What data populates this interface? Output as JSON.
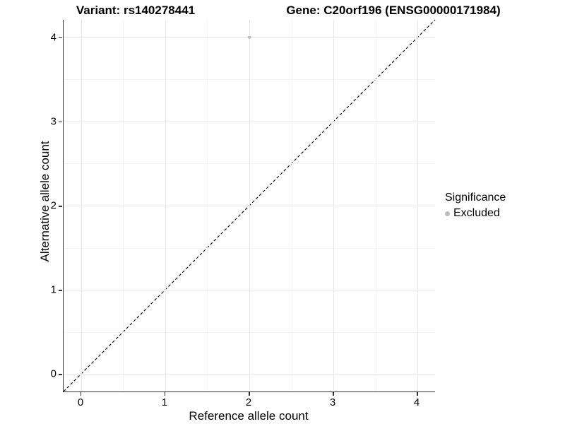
{
  "chart_data": {
    "type": "scatter",
    "titles": {
      "left": "Variant: rs140278441",
      "right": "Gene: C20orf196 (ENSG00000171984)"
    },
    "xlabel": "Reference allele count",
    "ylabel": "Alternative allele count",
    "x_ticks": [
      0,
      1,
      2,
      3,
      4
    ],
    "y_ticks": [
      0,
      1,
      2,
      3,
      4
    ],
    "x_minor_ticks": [
      0.5,
      1.5,
      2.5,
      3.5
    ],
    "y_minor_ticks": [
      0.5,
      1.5,
      2.5,
      3.5
    ],
    "xlim": [
      -0.21,
      4.21
    ],
    "ylim": [
      -0.21,
      4.21
    ],
    "grid": true,
    "points": [
      {
        "x": 2,
        "y": 4,
        "series": "Excluded"
      }
    ],
    "reference_line": {
      "slope": 1,
      "intercept": 0,
      "style": "dashed",
      "color": "#000000"
    },
    "legend": {
      "title": "Significance",
      "position": "right",
      "items": [
        {
          "label": "Excluded",
          "color": "#bdbdbd",
          "marker": "circle"
        }
      ]
    },
    "colors": {
      "point": "#c0c0c0",
      "grid_major": "#e9e9e9",
      "grid_minor": "#f5f5f5",
      "axis_line": "#333333",
      "tick": "#333333",
      "text": "#000000",
      "background": "#ffffff"
    }
  }
}
